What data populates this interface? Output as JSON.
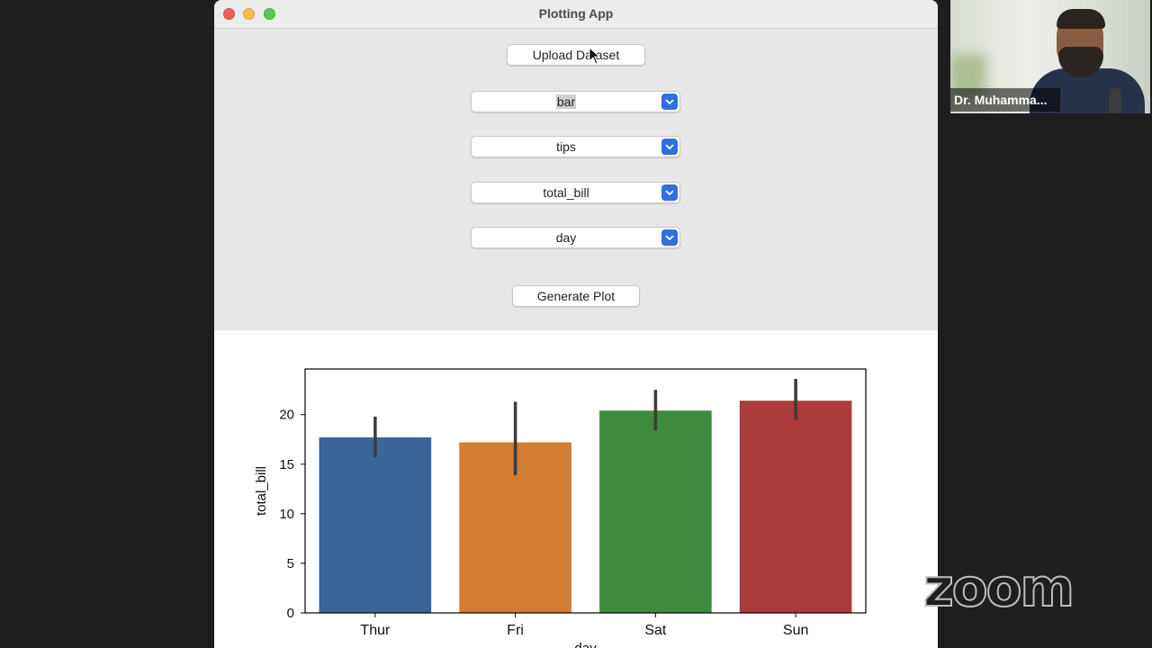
{
  "window": {
    "title": "Plotting App"
  },
  "controls": {
    "upload_label": "Upload Dataset",
    "plot_type": "bar",
    "dataset": "tips",
    "y_column": "total_bill",
    "x_column": "day",
    "generate_label": "Generate Plot"
  },
  "chart_data": {
    "type": "bar",
    "categories": [
      "Thur",
      "Fri",
      "Sat",
      "Sun"
    ],
    "values": [
      17.7,
      17.2,
      20.4,
      21.4
    ],
    "error_low": [
      15.7,
      13.9,
      18.4,
      19.5
    ],
    "error_high": [
      19.8,
      21.3,
      22.5,
      23.6
    ],
    "colors": [
      "#3a6598",
      "#d27d31",
      "#3e8a3e",
      "#ab3b3a"
    ],
    "xlabel": "day",
    "ylabel": "total_bill",
    "yticks": [
      0,
      5,
      10,
      15,
      20
    ],
    "ylim": [
      0,
      24.6
    ]
  },
  "video": {
    "participant_name": "Dr. Muhamma..."
  },
  "app_logo": {
    "text": "zoom"
  }
}
